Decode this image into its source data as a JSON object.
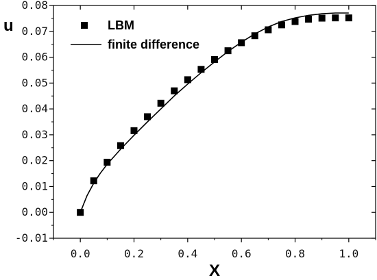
{
  "chart_data": {
    "type": "line",
    "xlabel": "X",
    "ylabel": "u",
    "xlim": [
      -0.1,
      1.1
    ],
    "ylim": [
      -0.01,
      0.08
    ],
    "x_ticks": [
      0.0,
      0.2,
      0.4,
      0.6,
      0.8,
      1.0
    ],
    "x_tick_labels": [
      "0.0",
      "0.2",
      "0.4",
      "0.6",
      "0.8",
      "1.0"
    ],
    "y_ticks": [
      -0.01,
      0.0,
      0.01,
      0.02,
      0.03,
      0.04,
      0.05,
      0.06,
      0.07,
      0.08
    ],
    "y_tick_labels": [
      "-0.01",
      "0.00",
      "0.01",
      "0.02",
      "0.03",
      "0.04",
      "0.05",
      "0.06",
      "0.07",
      "0.08"
    ],
    "grid": false,
    "legend_position": "top-left",
    "series": [
      {
        "name": "LBM",
        "style": "square-marker",
        "color": "#000000",
        "x": [
          0.0,
          0.05,
          0.1,
          0.15,
          0.2,
          0.25,
          0.3,
          0.35,
          0.4,
          0.45,
          0.5,
          0.55,
          0.6,
          0.65,
          0.7,
          0.75,
          0.8,
          0.85,
          0.9,
          0.95,
          1.0
        ],
        "y": [
          0.0,
          0.0122,
          0.0194,
          0.0258,
          0.0316,
          0.037,
          0.0422,
          0.047,
          0.0513,
          0.0553,
          0.0591,
          0.0625,
          0.0656,
          0.0683,
          0.0706,
          0.0725,
          0.0738,
          0.0747,
          0.0751,
          0.0752,
          0.0752
        ]
      },
      {
        "name": "finite difference",
        "style": "solid-line",
        "color": "#000000",
        "x": [
          0.0,
          0.025,
          0.05,
          0.075,
          0.1,
          0.15,
          0.2,
          0.25,
          0.3,
          0.35,
          0.4,
          0.45,
          0.5,
          0.55,
          0.6,
          0.65,
          0.7,
          0.75,
          0.8,
          0.85,
          0.9,
          0.95,
          1.0
        ],
        "y": [
          0.0,
          0.0065,
          0.0113,
          0.0152,
          0.0186,
          0.0244,
          0.0298,
          0.035,
          0.04,
          0.045,
          0.0496,
          0.054,
          0.0582,
          0.0622,
          0.0658,
          0.069,
          0.0717,
          0.0738,
          0.0752,
          0.0762,
          0.0768,
          0.0771,
          0.0771
        ]
      }
    ]
  }
}
